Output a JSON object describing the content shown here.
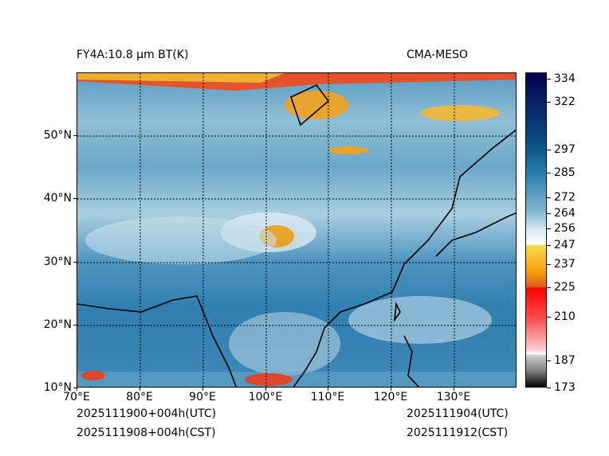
{
  "title_left": "FY4A:10.8 µm BT(K)",
  "title_right": "CMA-MESO",
  "x_ticks": [
    "70°E",
    "80°E",
    "90°E",
    "100°E",
    "110°E",
    "120°E",
    "130°E"
  ],
  "y_ticks": [
    "10°N",
    "20°N",
    "30°N",
    "40°N",
    "50°N"
  ],
  "colorbar": {
    "ticks": [
      "334",
      "322",
      "297",
      "285",
      "272",
      "264",
      "256",
      "247",
      "237",
      "225",
      "210",
      "187",
      "173"
    ],
    "unit": "K"
  },
  "footer": {
    "init_utc": "2025111900+004h(UTC)",
    "init_cst": "2025111908+004h(CST)",
    "valid_utc": "2025111904(UTC)",
    "valid_cst": "2025111912(CST)"
  }
}
